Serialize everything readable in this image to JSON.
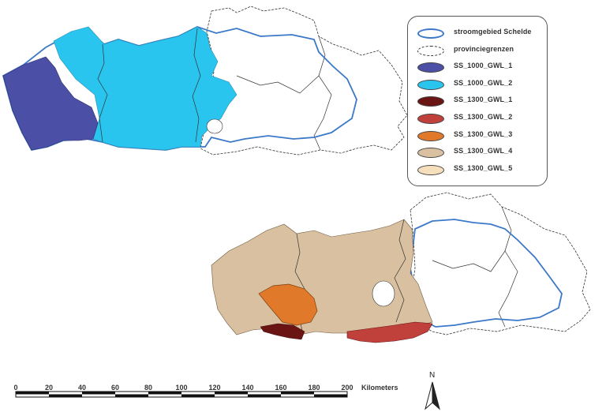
{
  "colors": {
    "scheldt_boundary": "#3b78c8",
    "province_border": "#333333",
    "ss_1000_gwl_1": "#4b4fa6",
    "ss_1000_gwl_2": "#29c5ef",
    "ss_1300_gwl_1": "#6b1414",
    "ss_1300_gwl_2": "#c0413b",
    "ss_1300_gwl_3": "#e07a2a",
    "ss_1300_gwl_4": "#d9c0a0",
    "ss_1300_gwl_5": "#f6dfbd"
  },
  "legend": {
    "items": [
      {
        "label": "stroomgebied Schelde",
        "symbol": "outline-blue"
      },
      {
        "label": "provinciegrenzen",
        "symbol": "outline-dashed"
      },
      {
        "label": "SS_1000_GWL_1",
        "symbol": "fill",
        "color": "#4b4fa6"
      },
      {
        "label": "SS_1000_GWL_2",
        "symbol": "fill",
        "color": "#29c5ef"
      },
      {
        "label": "SS_1300_GWL_1",
        "symbol": "fill",
        "color": "#6b1414"
      },
      {
        "label": "SS_1300_GWL_2",
        "symbol": "fill",
        "color": "#c0413b"
      },
      {
        "label": "SS_1300_GWL_3",
        "symbol": "fill",
        "color": "#e07a2a"
      },
      {
        "label": "SS_1300_GWL_4",
        "symbol": "fill",
        "color": "#d9c0a0"
      },
      {
        "label": "SS_1300_GWL_5",
        "symbol": "fill",
        "color": "#f6dfbd"
      }
    ]
  },
  "scale_bar": {
    "ticks": [
      "0",
      "20",
      "40",
      "60",
      "80",
      "100",
      "120",
      "140",
      "160",
      "180",
      "200"
    ],
    "unit": "Kilometers"
  },
  "north_arrow": {
    "label": "N",
    "icon": "north-arrow-icon"
  }
}
